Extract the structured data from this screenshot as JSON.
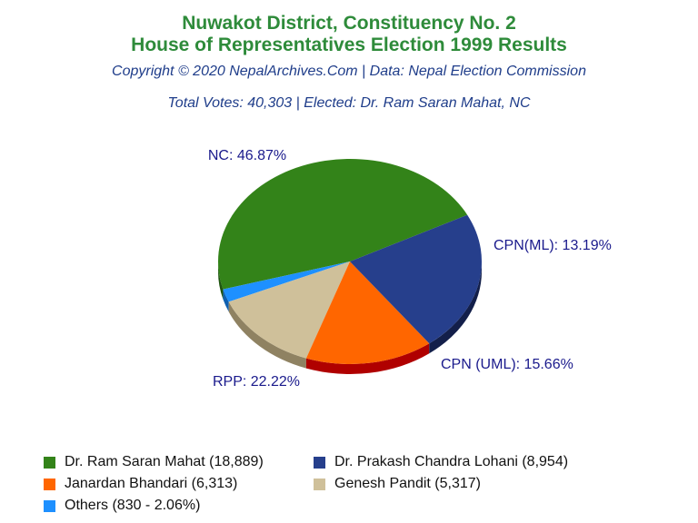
{
  "header": {
    "title_line1": "Nuwakot District, Constituency No. 2",
    "title_line2": "House of Representatives Election 1999 Results",
    "subtitle": "Copyright © 2020 NepalArchives.Com | Data: Nepal Election Commission",
    "summary": "Total Votes: 40,303 | Elected: Dr. Ram Saran Mahat, NC"
  },
  "colors": {
    "title": "#2e8b3a",
    "subtitle": "#1f3d8a",
    "slice_label": "#1a1a8c"
  },
  "chart_data": {
    "type": "pie",
    "title": "Nuwakot District, Constituency No. 2 House of Representatives Election 1999 Results",
    "slices": [
      {
        "label": "NC: 46.87%",
        "legend": "Dr. Ram Saran Mahat (18,889)",
        "value": 18889,
        "percent": 46.87,
        "color": "#338319",
        "side": "#1f5510"
      },
      {
        "label": "",
        "legend": "Others (830 - 2.06%)",
        "value": 830,
        "percent": 2.06,
        "color": "#1e90ff",
        "side": "#1060b0"
      },
      {
        "label": "CPN(ML): 13.19%",
        "legend": "Genesh Pandit (5,317)",
        "value": 5317,
        "percent": 13.19,
        "color": "#cfc09a",
        "side": "#8f8262"
      },
      {
        "label": "CPN (UML): 15.66%",
        "legend": "Janardan Bhandari (6,313)",
        "value": 6313,
        "percent": 15.66,
        "color": "#ff6600",
        "side": "#b00000"
      },
      {
        "label": "RPP: 22.22%",
        "legend": "Dr. Prakash Chandra Lohani (8,954)",
        "value": 8954,
        "percent": 22.22,
        "color": "#263f8c",
        "side": "#131f4a"
      }
    ],
    "legend_order": [
      "Dr. Ram Saran Mahat (18,889)",
      "Dr. Prakash Chandra Lohani (8,954)",
      "Janardan Bhandari (6,313)",
      "Genesh Pandit (5,317)",
      "Others (830 - 2.06%)"
    ],
    "legend_position": "bottom"
  }
}
